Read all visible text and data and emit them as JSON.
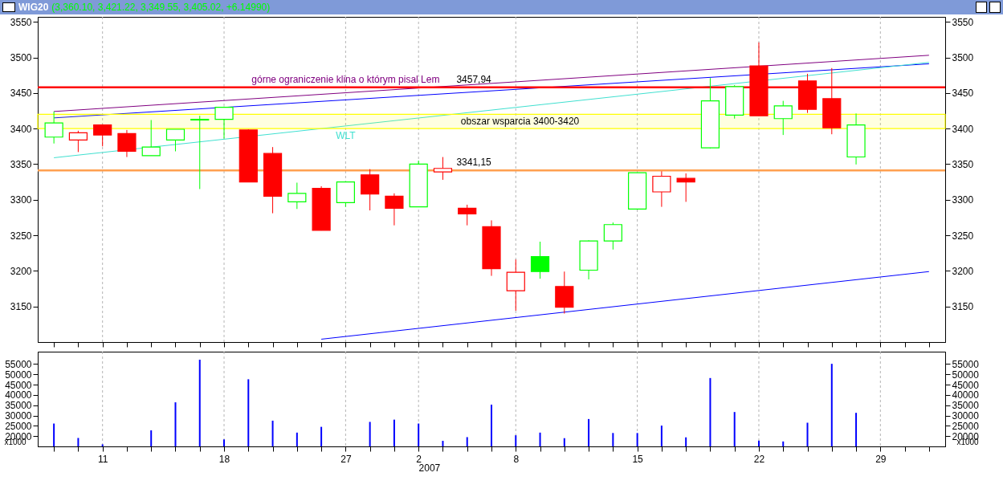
{
  "chart_data": [
    {
      "type": "candlestick",
      "title": "WIG20",
      "subtitle": "(3,360.10, 3,421.22, 3,349.55, 3,405.02, +6.14990)",
      "categories": [
        null,
        null,
        "11",
        null,
        null,
        null,
        null,
        "18",
        null,
        null,
        null,
        null,
        "27",
        null,
        null,
        "2",
        null,
        null,
        null,
        "8",
        null,
        null,
        null,
        null,
        "15",
        null,
        null,
        null,
        null,
        "22",
        null,
        null,
        null,
        null,
        "29",
        null,
        null
      ],
      "ohlc": [
        [
          3388,
          3424,
          3379,
          3408
        ],
        [
          3384,
          3397,
          3367,
          3394
        ],
        [
          3405,
          3406,
          3375,
          3391
        ],
        [
          3393,
          3398,
          3360,
          3368
        ],
        [
          3362,
          3412,
          3362,
          3374
        ],
        [
          3384,
          3399,
          3368,
          3399
        ],
        [
          3412,
          3418,
          3315,
          3413
        ],
        [
          3413,
          3431,
          3386,
          3430
        ],
        [
          3398,
          3399,
          3325,
          3325
        ],
        [
          3365,
          3374,
          3281,
          3305
        ],
        [
          3297,
          3324,
          3287,
          3309
        ],
        [
          3316,
          3319,
          3257,
          3257
        ],
        [
          3296,
          3325,
          3290,
          3325
        ],
        [
          3335,
          3343,
          3285,
          3308
        ],
        [
          3305,
          3309,
          3264,
          3288
        ],
        [
          3290,
          3355,
          3290,
          3350
        ],
        [
          3339,
          3360,
          3328,
          3344
        ],
        [
          3288,
          3293,
          3264,
          3280
        ],
        [
          3262,
          3271,
          3193,
          3203
        ],
        [
          3172,
          3216,
          3144,
          3198
        ],
        [
          3220,
          3241,
          3189,
          3199
        ],
        [
          3178,
          3199,
          3140,
          3149
        ],
        [
          3201,
          3243,
          3188,
          3242
        ],
        [
          3242,
          3268,
          3230,
          3265
        ],
        [
          3287,
          3338,
          3286,
          3338
        ],
        [
          3311,
          3340,
          3290,
          3333
        ],
        [
          3330,
          3337,
          3297,
          3325
        ],
        [
          3373,
          3471,
          3372,
          3439
        ],
        [
          3419,
          3461,
          3414,
          3459
        ],
        [
          3488,
          3521,
          3418,
          3418
        ],
        [
          3414,
          3439,
          3391,
          3432
        ],
        [
          3467,
          3477,
          3422,
          3427
        ],
        [
          3442,
          3485,
          3392,
          3401
        ],
        [
          3360.1,
          3421.22,
          3349.55,
          3405.02
        ],
        null,
        null,
        null
      ],
      "colors": [
        "#00ff00",
        "#ff0000",
        "#ff0000",
        "#ff0000",
        "#00ff00",
        "#00ff00",
        "#00ff00",
        "#00ff00",
        "#ff0000",
        "#ff0000",
        "#00ff00",
        "#ff0000",
        "#00ff00",
        "#ff0000",
        "#ff0000",
        "#00ff00",
        "#ff0000",
        "#ff0000",
        "#ff0000",
        "#ff0000",
        "#00ff00",
        "#ff0000",
        "#00ff00",
        "#00ff00",
        "#00ff00",
        "#ff0000",
        "#ff0000",
        "#00ff00",
        "#00ff00",
        "#ff0000",
        "#00ff00",
        "#ff0000",
        "#ff0000",
        "#00ff00",
        null,
        null,
        null
      ],
      "series": [
        {
          "type": "line",
          "name": "górne ograniczenie klina o którym pisal Lem",
          "color": "#800080",
          "values": [
            3424,
            null,
            null,
            null,
            null,
            null,
            null,
            null,
            null,
            null,
            null,
            null,
            null,
            null,
            null,
            null,
            null,
            null,
            null,
            null,
            null,
            null,
            null,
            null,
            null,
            null,
            null,
            null,
            null,
            null,
            null,
            null,
            null,
            null,
            null,
            null,
            3503
          ]
        },
        {
          "type": "line",
          "color": "#0000ff",
          "values": [
            3415,
            null,
            null,
            null,
            null,
            null,
            null,
            null,
            null,
            null,
            null,
            null,
            null,
            null,
            null,
            null,
            null,
            null,
            null,
            null,
            null,
            null,
            null,
            null,
            null,
            null,
            null,
            null,
            null,
            null,
            null,
            null,
            null,
            null,
            null,
            null,
            3491
          ]
        },
        {
          "type": "line",
          "name": "WLT",
          "color": "#40e0d0",
          "values": [
            3359,
            null,
            null,
            null,
            null,
            null,
            null,
            null,
            null,
            null,
            null,
            null,
            null,
            null,
            null,
            null,
            null,
            null,
            null,
            null,
            null,
            null,
            null,
            null,
            null,
            null,
            null,
            null,
            null,
            null,
            null,
            null,
            null,
            null,
            null,
            null,
            3493
          ]
        },
        {
          "type": "line",
          "color": "#0000ff",
          "values": [
            null,
            null,
            null,
            null,
            null,
            null,
            null,
            null,
            null,
            null,
            null,
            3104,
            null,
            null,
            null,
            null,
            null,
            null,
            null,
            null,
            null,
            null,
            null,
            null,
            null,
            null,
            null,
            null,
            null,
            null,
            null,
            null,
            null,
            null,
            null,
            null,
            3199
          ]
        }
      ],
      "ylim": [
        3100,
        3557
      ],
      "yticks": [
        3150,
        3200,
        3250,
        3300,
        3350,
        3400,
        3450,
        3500,
        3550
      ],
      "y2lim": [
        3100,
        3557
      ],
      "y2ticks": [
        3150,
        3200,
        3250,
        3300,
        3350,
        3400,
        3450,
        3500,
        3550
      ],
      "ref_lines": [
        {
          "axis": "y",
          "value": 3457.94,
          "label": "3457,94",
          "color": "#ff0000"
        },
        {
          "axis": "y",
          "value": 3341.15,
          "label": "3341,15",
          "color": "#ffa050"
        }
      ],
      "bands": [
        {
          "axis": "y",
          "from": 3400,
          "to": 3420,
          "label": "obszar wsparcia 3400-3420",
          "color": "#ffff00"
        }
      ],
      "grid": "x",
      "tick_labels": "y"
    },
    {
      "type": "bar",
      "categories": [
        null,
        null,
        "11",
        null,
        null,
        null,
        null,
        "18",
        null,
        null,
        null,
        null,
        "27",
        null,
        null,
        "2",
        null,
        null,
        null,
        "8",
        null,
        null,
        null,
        null,
        "15",
        null,
        null,
        null,
        null,
        "22",
        null,
        null,
        null,
        null,
        "29",
        null,
        null
      ],
      "values": [
        26100,
        19100,
        16000,
        null,
        22800,
        36400,
        57100,
        18400,
        47600,
        27500,
        21700,
        24500,
        null,
        26900,
        28000,
        26100,
        17700,
        19500,
        35300,
        20400,
        21700,
        19000,
        28300,
        21500,
        21500,
        25100,
        19400,
        48200,
        31700,
        17800,
        17400,
        26500,
        55100,
        31300,
        null,
        null,
        null
      ],
      "color": "#0000ff",
      "ylim": [
        15000,
        61000
      ],
      "yticks": [
        20000,
        25000,
        30000,
        35000,
        40000,
        45000,
        50000,
        55000
      ],
      "y2lim": [
        15000,
        61000
      ],
      "y2ticks": [
        20000,
        25000,
        30000,
        35000,
        40000,
        45000,
        50000,
        55000
      ],
      "annotations": [
        "2007",
        "x1000"
      ],
      "grid": "x"
    }
  ]
}
